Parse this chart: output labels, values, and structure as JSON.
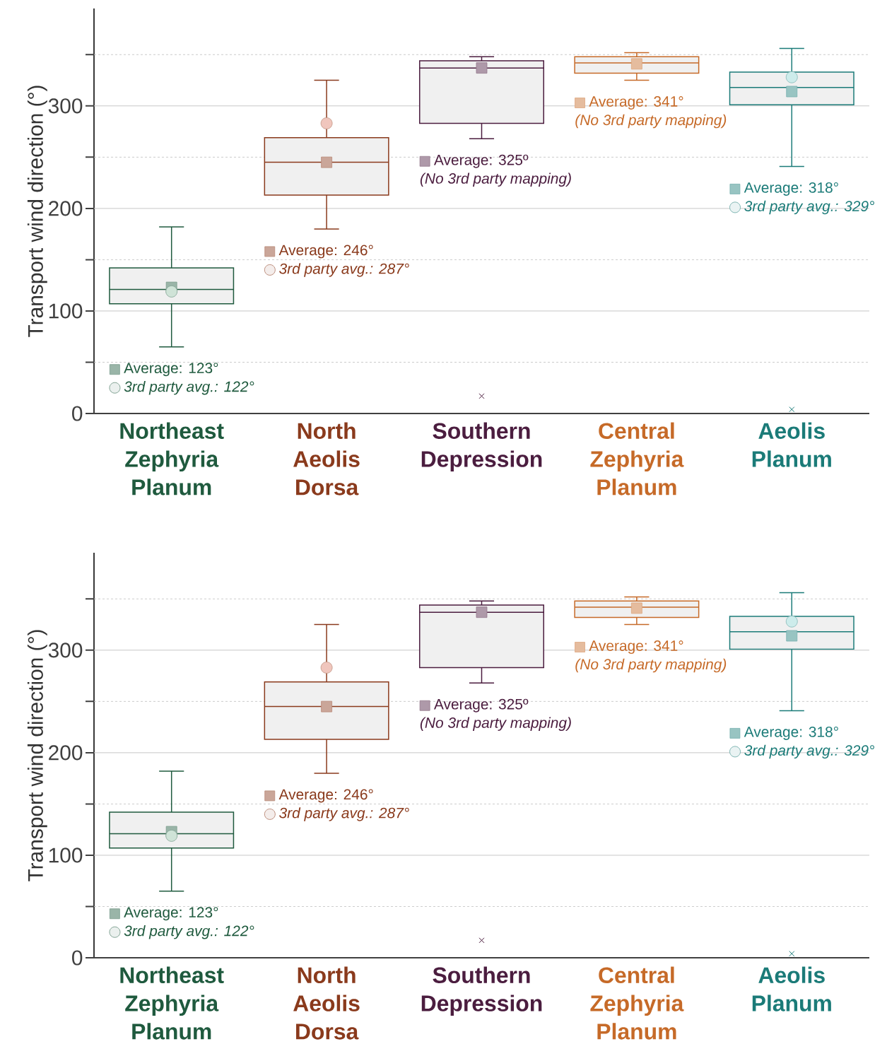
{
  "chart_data": [
    {
      "type": "box",
      "ylabel": "Transport wind direction (°)",
      "categories": [
        "Northeast Zephyria Planum",
        "North Aeolis Dorsa",
        "Southern Depression",
        "Central Zephyria Planum",
        "Aeolis Planum"
      ],
      "ylim": [
        0,
        395
      ],
      "yticks": [
        0,
        {
          "value": 50,
          "label": null
        },
        100,
        {
          "value": 150,
          "label": null
        },
        200,
        {
          "value": 250,
          "label": null
        },
        300,
        {
          "value": 350,
          "label": null
        }
      ],
      "grid": "y",
      "series": [
        {
          "type": "box",
          "colors": [
            "#1f5a3e",
            "#8a3a1c",
            "#4b1d3f",
            "#c66a28",
            "#1b7b78"
          ],
          "boxes": [
            {
              "low": 65,
              "q1": 107,
              "median": 121,
              "q3": 142,
              "high": 182,
              "mean": 123
            },
            {
              "low": 180,
              "q1": 213,
              "median": 245,
              "q3": 269,
              "high": 325,
              "mean": 245
            },
            {
              "low": 268,
              "q1": 283,
              "median": 337,
              "q3": 344,
              "high": 348,
              "mean": 337,
              "outliers": [
                17
              ]
            },
            {
              "low": 325,
              "q1": 332,
              "median": 342,
              "q3": 348,
              "high": 352,
              "mean": 341
            },
            {
              "low": 241,
              "q1": 301,
              "median": 318,
              "q3": 333,
              "high": 356,
              "mean": 314,
              "outliers": [
                4
              ]
            }
          ]
        },
        {
          "type": "scatter",
          "marker": "circle",
          "x": [
            "Northeast Zephyria Planum",
            "North Aeolis Dorsa",
            "Southern Depression",
            "Central Zephyria Planum",
            "Aeolis Planum"
          ],
          "values": [
            119,
            283,
            null,
            null,
            328
          ],
          "colors": [
            "#cfe3d7",
            "#f0c6bd",
            null,
            null,
            "#cdeceb"
          ]
        }
      ],
      "annotations": [
        "Average: 123°",
        "3rd party avg.: 122°",
        "Average: 246°",
        "3rd party avg.: 287°",
        "Average: 325º",
        "(No 3rd party mapping)",
        "Average: 341°",
        "(No 3rd party mapping)",
        "Average: 318°",
        "3rd party avg.: 329°"
      ]
    },
    {
      "type": "box",
      "ylabel": "Transport wind direction (°)",
      "categories": [
        "Northeast Zephyria Planum",
        "North Aeolis Dorsa",
        "Southern Depression",
        "Central Zephyria Planum",
        "Aeolis Planum"
      ],
      "ylim": [
        0,
        395
      ],
      "yticks": [
        0,
        {
          "value": 50,
          "label": null
        },
        100,
        {
          "value": 150,
          "label": null
        },
        200,
        {
          "value": 250,
          "label": null
        },
        300,
        {
          "value": 350,
          "label": null
        }
      ],
      "grid": "y",
      "series": [
        {
          "type": "box",
          "colors": [
            "#1f5a3e",
            "#8a3a1c",
            "#4b1d3f",
            "#c66a28",
            "#1b7b78"
          ],
          "boxes": [
            {
              "low": 65,
              "q1": 107,
              "median": 121,
              "q3": 142,
              "high": 182,
              "mean": 123
            },
            {
              "low": 180,
              "q1": 213,
              "median": 245,
              "q3": 269,
              "high": 325,
              "mean": 245
            },
            {
              "low": 268,
              "q1": 283,
              "median": 337,
              "q3": 344,
              "high": 348,
              "mean": 337,
              "outliers": [
                17
              ]
            },
            {
              "low": 325,
              "q1": 332,
              "median": 342,
              "q3": 348,
              "high": 352,
              "mean": 341
            },
            {
              "low": 241,
              "q1": 301,
              "median": 318,
              "q3": 333,
              "high": 356,
              "mean": 314,
              "outliers": [
                4
              ]
            }
          ]
        },
        {
          "type": "scatter",
          "marker": "circle",
          "x": [
            "Northeast Zephyria Planum",
            "North Aeolis Dorsa",
            "Southern Depression",
            "Central Zephyria Planum",
            "Aeolis Planum"
          ],
          "values": [
            119,
            283,
            null,
            null,
            328
          ],
          "colors": [
            "#cfe3d7",
            "#f0c6bd",
            null,
            null,
            "#cdeceb"
          ]
        }
      ],
      "annotations": [
        "Average: 123°",
        "3rd party avg.: 122°",
        "Average: 246°",
        "3rd party avg.: 287°",
        "Average: 325º",
        "(No 3rd party mapping)",
        "Average: 341°",
        "(No 3rd party mapping)",
        "Average: 318°",
        "3rd party avg.: 329°"
      ]
    }
  ]
}
